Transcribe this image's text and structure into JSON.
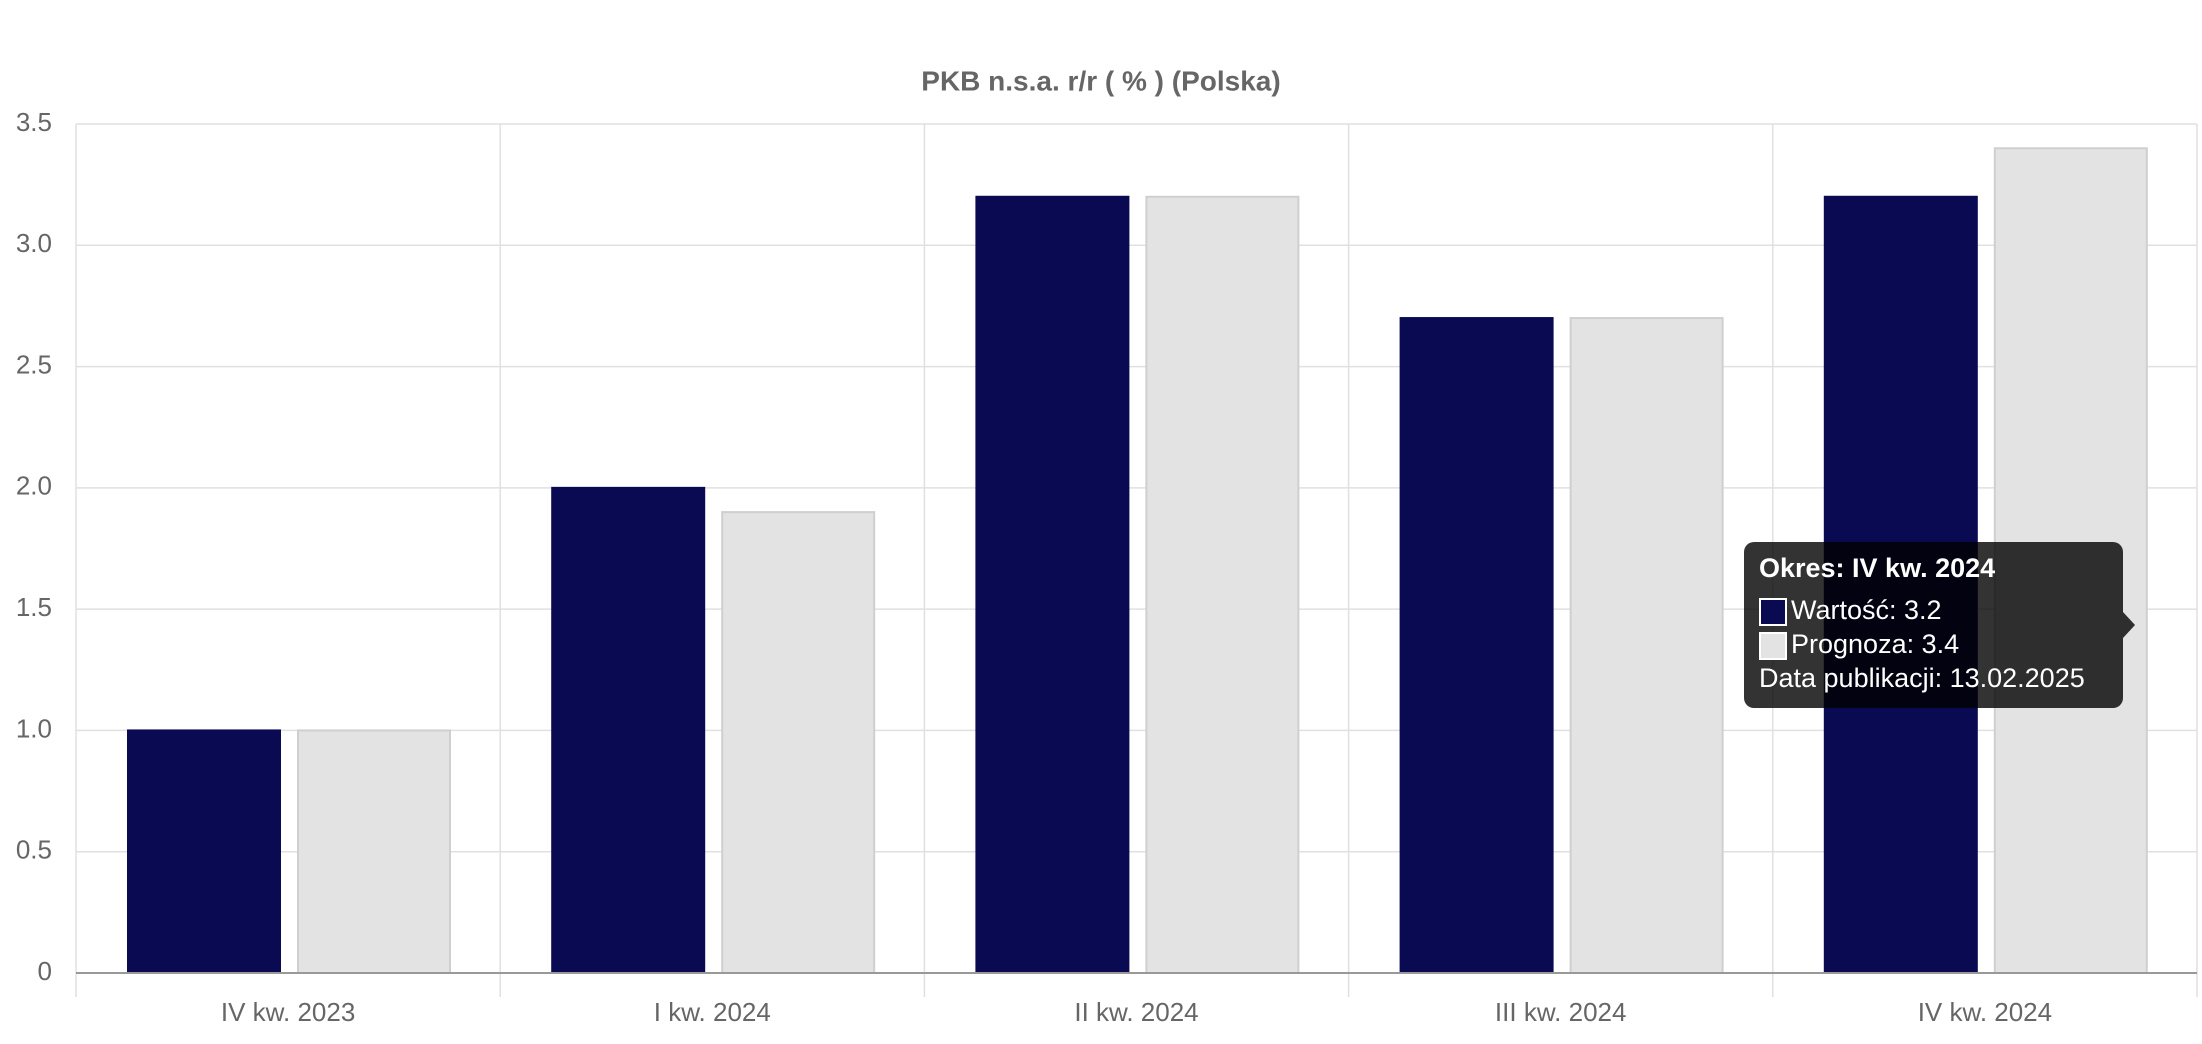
{
  "chart_data": {
    "type": "bar",
    "title": "PKB n.s.a. r/r ( % ) (Polska)",
    "categories": [
      "IV kw. 2023",
      "I kw. 2024",
      "II kw. 2024",
      "III kw. 2024",
      "IV kw. 2024"
    ],
    "series": [
      {
        "color": "#0a0a52",
        "values": [
          1.0,
          2.0,
          3.2,
          2.7,
          3.2
        ]
      },
      {
        "color": "#e3e3e3",
        "values": [
          1.0,
          1.9,
          3.2,
          2.7,
          3.4
        ]
      }
    ],
    "ylim": [
      0,
      3.5
    ],
    "yticks": [
      0,
      0.5,
      {
        "value": 1,
        "label": "1.0"
      },
      1.5,
      {
        "value": 2,
        "label": "2.0"
      },
      2.5,
      {
        "value": 3,
        "label": "3.0"
      },
      3.5
    ],
    "grid": true,
    "tooltip": {
      "title": "Okres: IV kw. 2024",
      "lines": [
        "Wartość: 3.2",
        "Prognoza: 3.4",
        "Data publikacji: 13.02.2025"
      ]
    }
  }
}
